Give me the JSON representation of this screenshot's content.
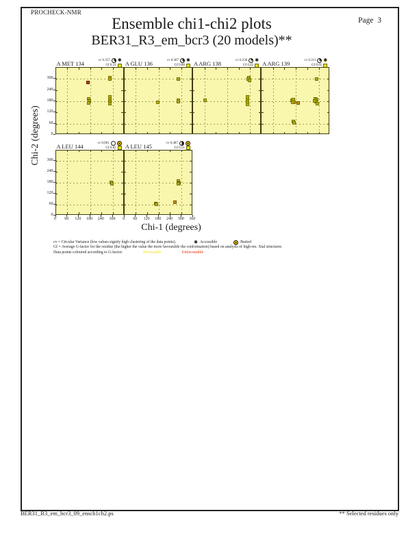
{
  "page": {
    "app_name": "PROCHECK-NMR",
    "page_label": "Page",
    "page_number": "3",
    "title": "Ensemble chi1-chi2 plots",
    "subtitle": "BER31_R3_em_bcr3 (20 models)**",
    "footer_left": "BER31_R3_em_bcr3_09_ensch1ch2.ps",
    "footer_right": "** Selected residues only"
  },
  "axes": {
    "xlabel": "Chi-1 (degrees)",
    "ylabel": "Chi-2 (degrees)",
    "axis_min": 0,
    "axis_max": 360,
    "tick_step": 60,
    "grid_values": [
      60,
      180,
      300
    ],
    "y_tick_labels": [
      0,
      60,
      120,
      180,
      240,
      300
    ],
    "x_tick_labels": [
      0,
      60,
      120,
      180,
      240,
      300,
      360
    ]
  },
  "labels": {
    "cv": "cv",
    "gf": "Gf"
  },
  "legend": {
    "cv_line": "cv = Circular Variance (low values signify high clustering of the data points).",
    "accessible_label": "Accessible",
    "buried_label": "Buried",
    "gf_line": "Gf = Average G-factor for the residue (the higher the value the more favourable the conformation)  based on analysis of high-res. Xtal structures",
    "points_line": "Data points coloured according to G-factor:",
    "favourable_label": "Favourable",
    "unfavourable_label": "Unfavourable",
    "favourable_color": "#f5e400",
    "unfavourable_color": "#ee2200",
    "star_icon": "✱"
  },
  "chart_data": {
    "type": "scatter",
    "title": "Ensemble chi1-chi2 plots",
    "subtitle": "BER31_R3_em_bcr3 (20 models)**",
    "xlabel": "Chi-1 (degrees)",
    "ylabel": "Chi-2 (degrees)",
    "xlim": [
      0,
      360
    ],
    "ylim": [
      0,
      360
    ],
    "grid_at": [
      60,
      180,
      300
    ],
    "point_color_legend": {
      "y": "favourable (yellow)",
      "o": "less favourable (orange)",
      "r": "unfavourable (red)"
    },
    "plots": [
      {
        "residue": "A MET 134",
        "cv": "0.357",
        "gf": "0.31",
        "accessibility": "accessible",
        "row": 0,
        "col": 0,
        "points": [
          [
            176,
            190,
            "y"
          ],
          [
            178,
            178,
            "y"
          ],
          [
            175,
            168,
            "y"
          ],
          [
            173,
            278,
            "r"
          ],
          [
            286,
            302,
            "y"
          ],
          [
            289,
            296,
            "y"
          ],
          [
            288,
            199,
            "y"
          ],
          [
            286,
            186,
            "y"
          ],
          [
            289,
            176,
            "y"
          ],
          [
            287,
            163,
            "y"
          ]
        ]
      },
      {
        "residue": "A GLU 136",
        "cv": "0.367",
        "gf": "0.88",
        "accessibility": "accessible",
        "row": 0,
        "col": 1,
        "points": [
          [
            180,
            172,
            "y"
          ],
          [
            285,
            182,
            "y"
          ],
          [
            288,
            175,
            "y"
          ],
          [
            286,
            297,
            "y"
          ]
        ]
      },
      {
        "residue": "A ARG 138",
        "cv": "0.236",
        "gf": "0.42",
        "accessibility": "accessible",
        "row": 0,
        "col": 2,
        "points": [
          [
            68,
            182,
            "y"
          ],
          [
            296,
            303,
            "y"
          ],
          [
            293,
            296,
            "y"
          ],
          [
            299,
            289,
            "y"
          ],
          [
            289,
            199,
            "y"
          ],
          [
            291,
            187,
            "y"
          ],
          [
            288,
            175,
            "y"
          ],
          [
            290,
            161,
            "y"
          ]
        ]
      },
      {
        "residue": "A ARG 139",
        "cv": "0.311",
        "gf": "0.65",
        "accessibility": "part-buried",
        "row": 0,
        "col": 3,
        "points": [
          [
            163,
            181,
            "y"
          ],
          [
            171,
            184,
            "y"
          ],
          [
            175,
            172,
            "y"
          ],
          [
            167,
            172,
            "y"
          ],
          [
            196,
            166,
            "o"
          ],
          [
            287,
            191,
            "y"
          ],
          [
            293,
            184,
            "y"
          ],
          [
            290,
            174,
            "y"
          ],
          [
            296,
            164,
            "y"
          ],
          [
            283,
            177,
            "y"
          ],
          [
            291,
            294,
            "y"
          ],
          [
            170,
            69,
            "y"
          ],
          [
            173,
            60,
            "y"
          ]
        ]
      },
      {
        "residue": "A LEU 144",
        "cv": "0.001",
        "gf": "0.82",
        "accessibility": "buried",
        "row": 1,
        "col": 0,
        "points": [
          [
            295,
            177,
            "y"
          ],
          [
            297,
            171,
            "y"
          ]
        ]
      },
      {
        "residue": "A LEU 145",
        "cv": "0.487",
        "gf": "0.51",
        "accessibility": "buried",
        "row": 1,
        "col": 1,
        "points": [
          [
            168,
            61,
            "y"
          ],
          [
            173,
            55,
            "y"
          ],
          [
            268,
            70,
            "o"
          ],
          [
            288,
            184,
            "y"
          ],
          [
            292,
            175,
            "y"
          ],
          [
            286,
            171,
            "y"
          ]
        ]
      }
    ]
  }
}
